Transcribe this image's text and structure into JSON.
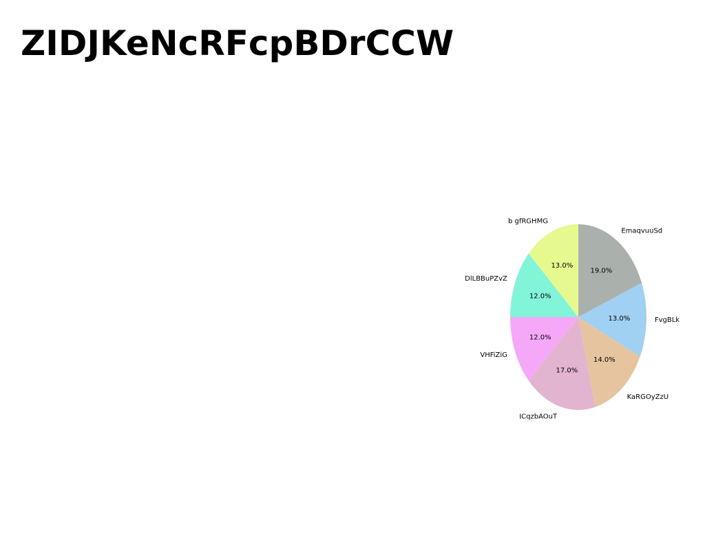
{
  "page": {
    "title": "ZIDJKeNcRFcpBDrCCW"
  },
  "chart_data": {
    "type": "pie",
    "title": "",
    "start_angle_deg": 90,
    "direction": "clockwise",
    "slices": [
      {
        "label": "EmaqvuuSd",
        "value": 19.0,
        "display": "19.0%",
        "color": "#aab1ad"
      },
      {
        "label": "FvgBLk",
        "value": 13.0,
        "display": "13.0%",
        "color": "#a0d0f2"
      },
      {
        "label": "KaRGOyZzU",
        "value": 14.0,
        "display": "14.0%",
        "color": "#e6c49f"
      },
      {
        "label": "ICqzbAOuT",
        "value": 17.0,
        "display": "17.0%",
        "color": "#e2b4d0"
      },
      {
        "label": "VHFiZiG",
        "value": 12.0,
        "display": "12.0%",
        "color": "#f5a8f8"
      },
      {
        "label": "DlLBBuPZvZ",
        "value": 12.0,
        "display": "12.0%",
        "color": "#82f4d8"
      },
      {
        "label": "b gfRGHMG",
        "value": 13.0,
        "display": "13.0%",
        "color": "#e6f98e"
      }
    ]
  }
}
